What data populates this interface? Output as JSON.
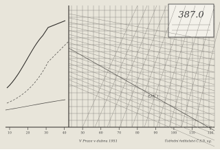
{
  "diagram": {
    "title": "387.0",
    "footer_left": "V Praze v dubnu 1951",
    "footer_right": "Ústřední ředitelství Č.S.D. ug.",
    "table_label": "ZÁT. 1",
    "axis_ticks": [
      "10",
      "20",
      "30",
      "40",
      "50",
      "60",
      "70",
      "80",
      "90",
      "100",
      "110",
      "120"
    ]
  }
}
